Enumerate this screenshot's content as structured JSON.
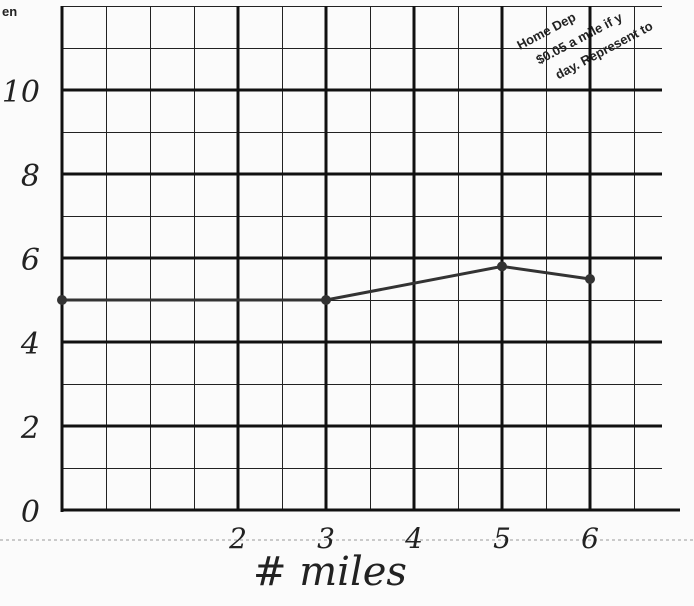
{
  "chart_data": {
    "type": "line",
    "annotations": [
      "en",
      "Home Dep",
      "$0.05 a mile if y",
      "day. Represent to"
    ],
    "x_label": "# miles",
    "x": [
      0,
      3,
      5,
      6
    ],
    "series": [
      {
        "values": [
          5,
          5,
          5.8,
          5.5
        ],
        "color": "#333333"
      }
    ],
    "xlim": [
      0,
      7
    ],
    "xticks": [
      2,
      3,
      4,
      5,
      6
    ],
    "ylim": [
      0,
      12
    ],
    "yticks": [
      0,
      2,
      4,
      6,
      8,
      10
    ],
    "grid": true
  }
}
